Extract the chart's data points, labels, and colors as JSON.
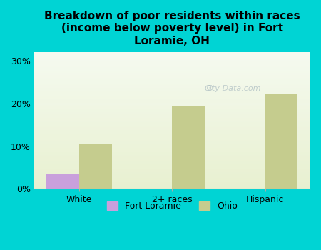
{
  "categories": [
    "White",
    "2+ races",
    "Hispanic"
  ],
  "fort_loramie": [
    3.5,
    0,
    0
  ],
  "ohio": [
    10.5,
    19.5,
    22.2
  ],
  "fort_loramie_color": "#c9a0dc",
  "ohio_color": "#c5cc8e",
  "title": "Breakdown of poor residents within races\n(income below poverty level) in Fort\nLoramie, OH",
  "title_fontsize": 11,
  "title_fontweight": "bold",
  "ylabel": "",
  "yticks": [
    0,
    10,
    20,
    30
  ],
  "yticklabels": [
    "0%",
    "10%",
    "20%",
    "30%"
  ],
  "ylim": [
    0,
    32
  ],
  "background_color": "#00d4d4",
  "plot_bg_top": "#e8f0d0",
  "plot_bg_bottom": "#f5faf0",
  "bar_width": 0.35,
  "legend_labels": [
    "Fort Loramie",
    "Ohio"
  ],
  "watermark": "City-Data.com"
}
